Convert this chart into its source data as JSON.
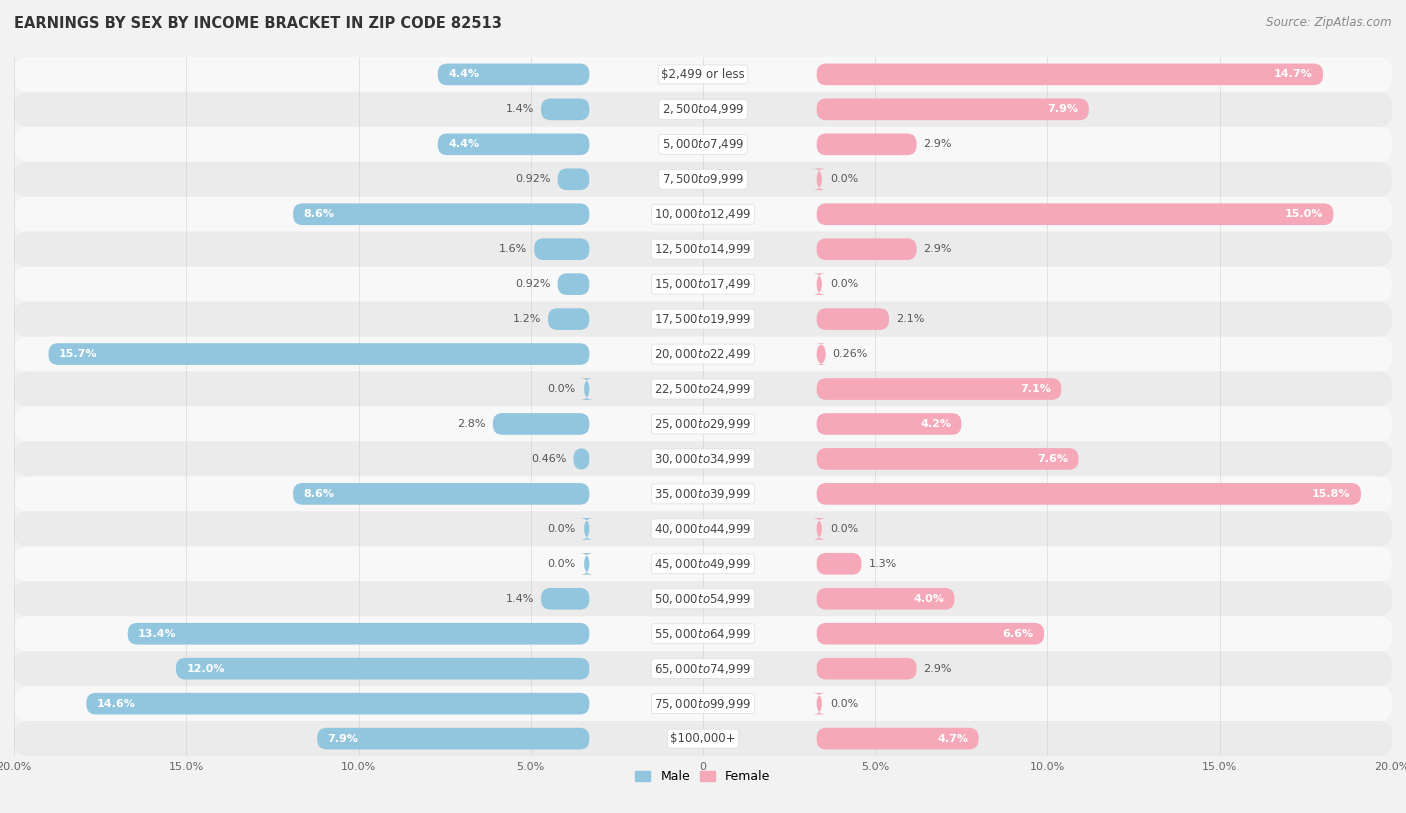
{
  "title": "EARNINGS BY SEX BY INCOME BRACKET IN ZIP CODE 82513",
  "source": "Source: ZipAtlas.com",
  "categories": [
    "$2,499 or less",
    "$2,500 to $4,999",
    "$5,000 to $7,499",
    "$7,500 to $9,999",
    "$10,000 to $12,499",
    "$12,500 to $14,999",
    "$15,000 to $17,499",
    "$17,500 to $19,999",
    "$20,000 to $22,499",
    "$22,500 to $24,999",
    "$25,000 to $29,999",
    "$30,000 to $34,999",
    "$35,000 to $39,999",
    "$40,000 to $44,999",
    "$45,000 to $49,999",
    "$50,000 to $54,999",
    "$55,000 to $64,999",
    "$65,000 to $74,999",
    "$75,000 to $99,999",
    "$100,000+"
  ],
  "male_values": [
    4.4,
    1.4,
    4.4,
    0.92,
    8.6,
    1.6,
    0.92,
    1.2,
    15.7,
    0.0,
    2.8,
    0.46,
    8.6,
    0.0,
    0.0,
    1.4,
    13.4,
    12.0,
    14.6,
    7.9
  ],
  "female_values": [
    14.7,
    7.9,
    2.9,
    0.0,
    15.0,
    2.9,
    0.0,
    2.1,
    0.26,
    7.1,
    4.2,
    7.6,
    15.8,
    0.0,
    1.3,
    4.0,
    6.6,
    2.9,
    0.0,
    4.7
  ],
  "male_color": "#92c5de",
  "female_color": "#f4a8b8",
  "axis_limit": 20.0,
  "bar_height": 0.62,
  "row_colors": [
    "#f0f0f0",
    "#e8e8e8"
  ],
  "label_fontsize": 8.5,
  "value_fontsize": 8.0
}
